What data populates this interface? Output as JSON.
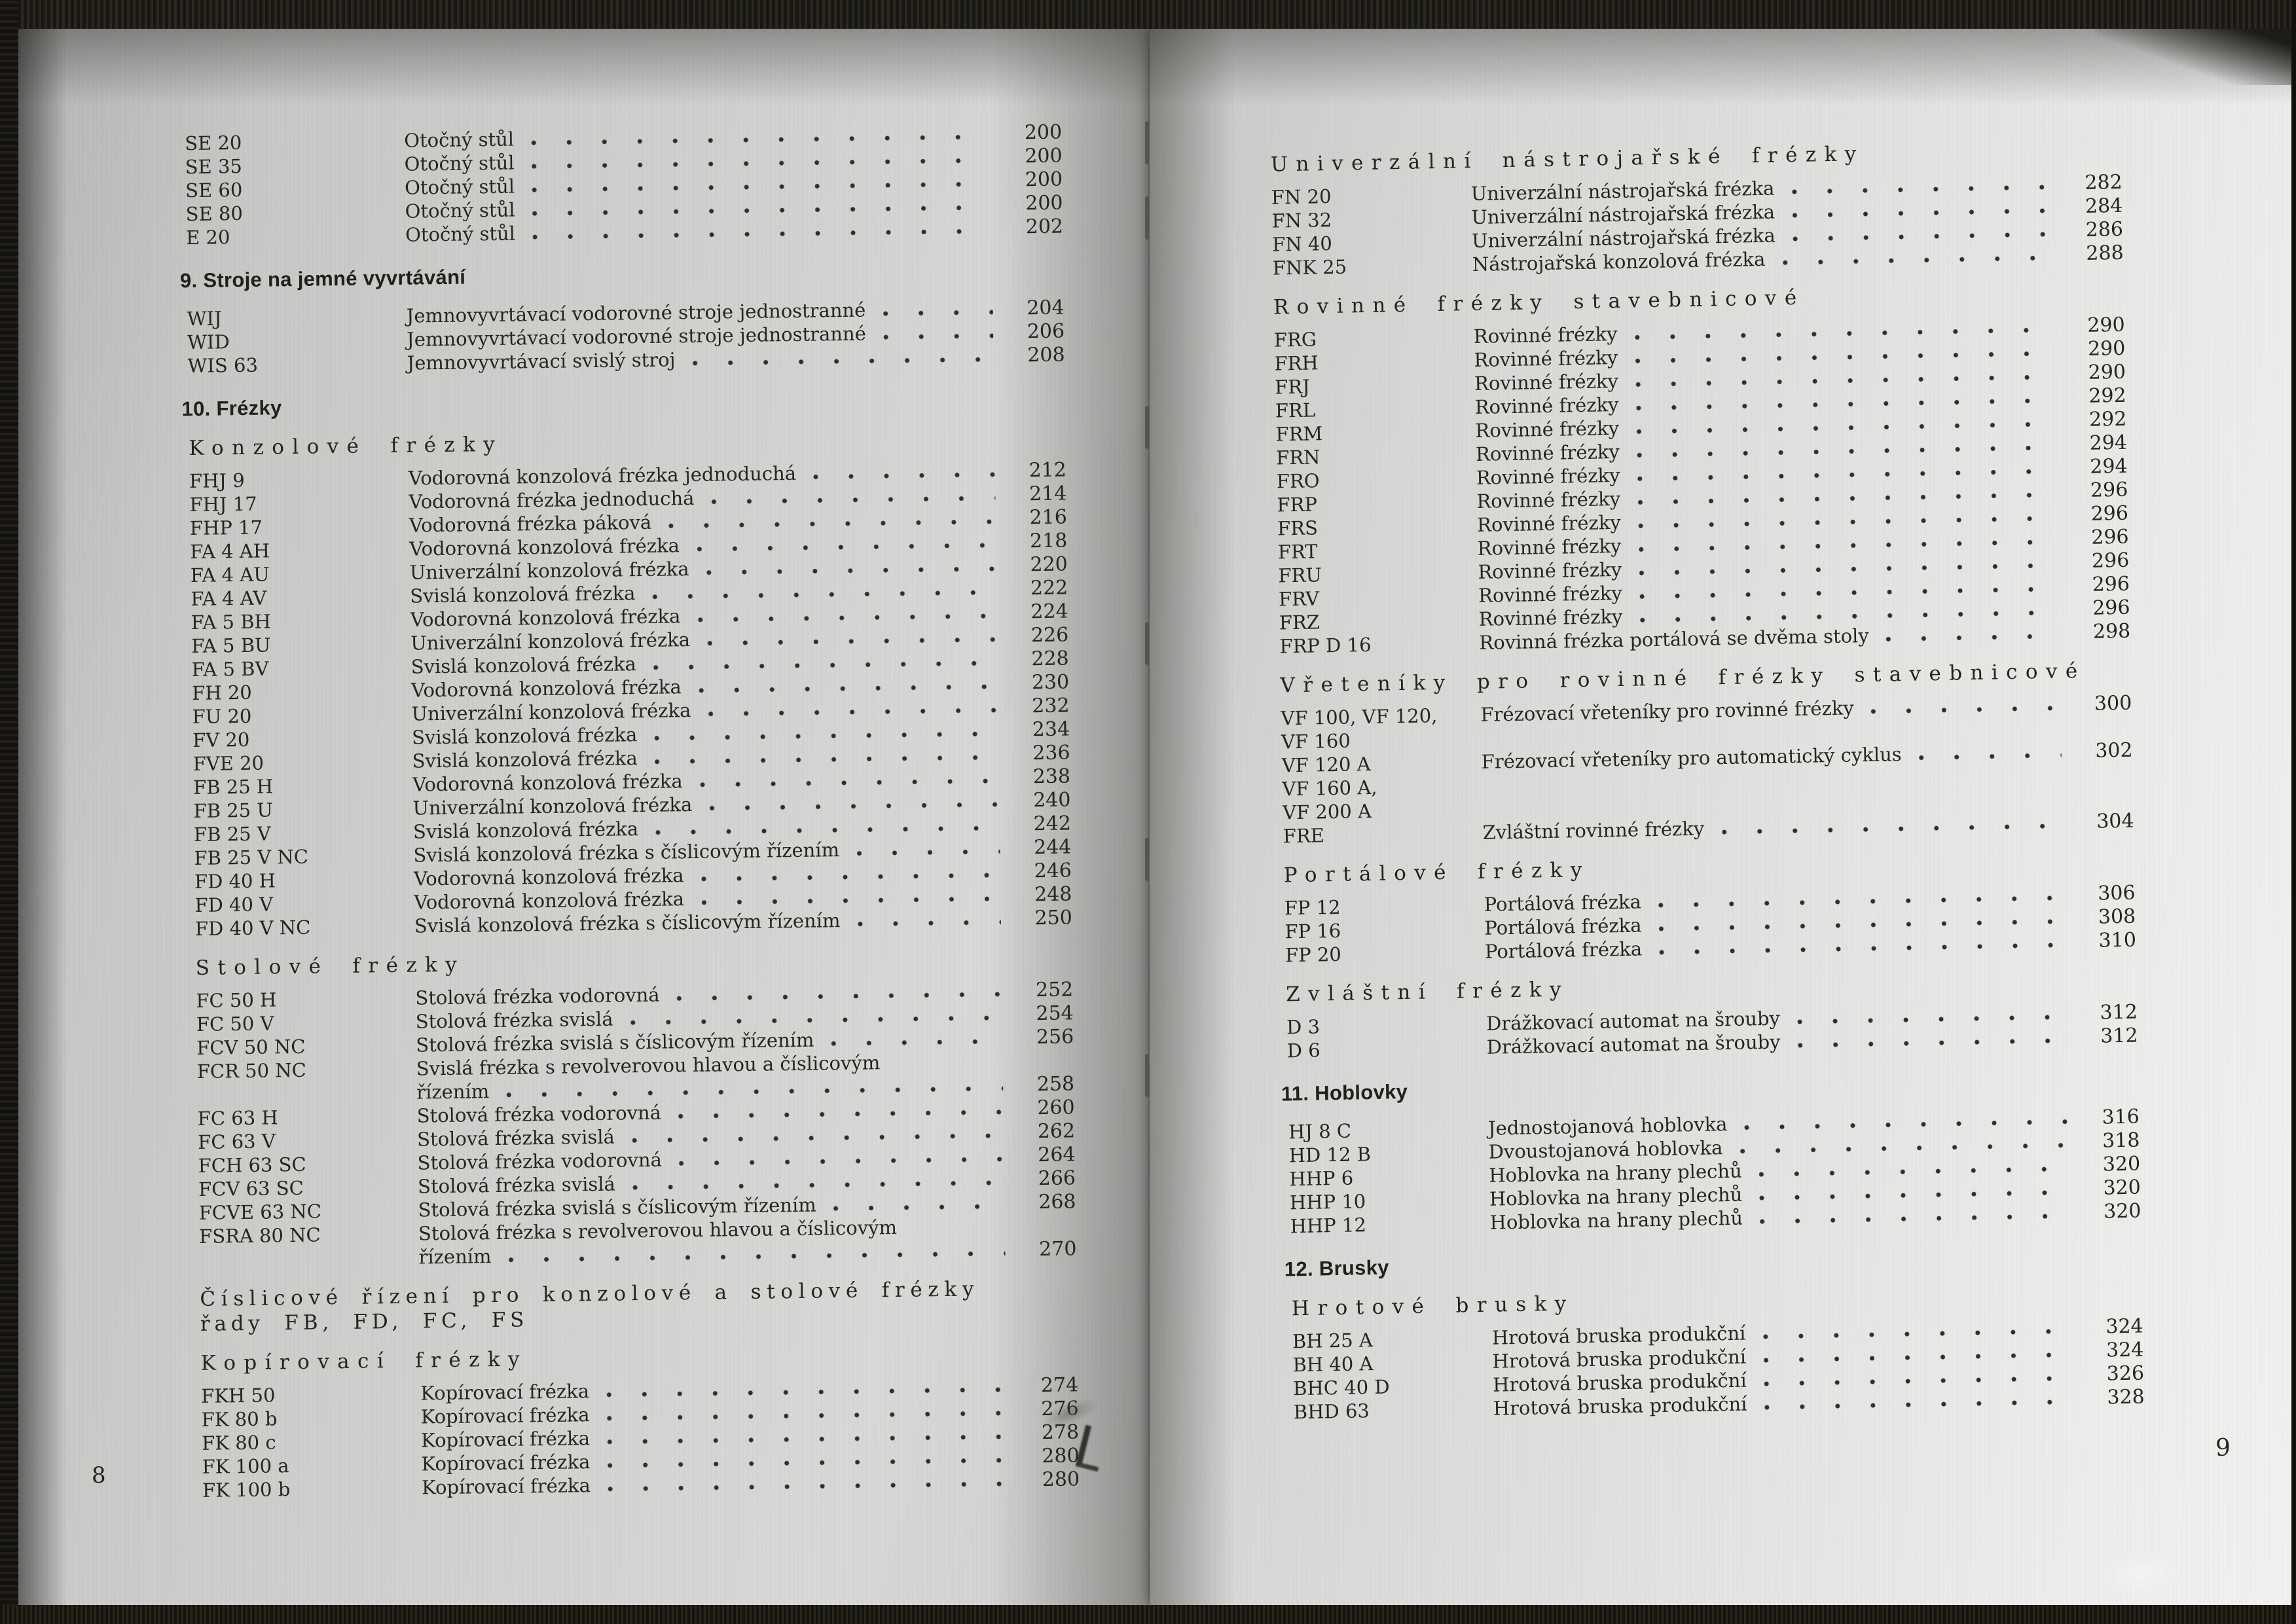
{
  "left_page": {
    "folio": "8",
    "blocks": [
      {
        "type": "entries",
        "rows": [
          {
            "code": "SE 20",
            "desc": "Otočný stůl",
            "page": "200"
          },
          {
            "code": "SE 35",
            "desc": "Otočný stůl",
            "page": "200"
          },
          {
            "code": "SE 60",
            "desc": "Otočný stůl",
            "page": "200"
          },
          {
            "code": "SE 80",
            "desc": "Otočný stůl",
            "page": "200"
          },
          {
            "code": "E 20",
            "desc": "Otočný stůl",
            "page": "202"
          }
        ]
      },
      {
        "type": "section",
        "label": "9. Stroje na jemné vyvrtávání"
      },
      {
        "type": "entries",
        "rows": [
          {
            "code": "WIJ",
            "desc": "Jemnovyvrtávací vodorovné stroje jednostranné",
            "page": "204"
          },
          {
            "code": "WID",
            "desc": "Jemnovyvrtávací vodorovné stroje jednostranné",
            "page": "206"
          },
          {
            "code": "WIS 63",
            "desc": "Jemnovyvrtávací svislý stroj",
            "page": "208"
          }
        ]
      },
      {
        "type": "section",
        "label": "10. Frézky"
      },
      {
        "type": "subsection",
        "label": "Konzolové frézky"
      },
      {
        "type": "entries",
        "rows": [
          {
            "code": "FHJ 9",
            "desc": "Vodorovná konzolová frézka jednoduchá",
            "page": "212"
          },
          {
            "code": "FHJ 17",
            "desc": "Vodorovná frézka jednoduchá",
            "page": "214"
          },
          {
            "code": "FHP 17",
            "desc": "Vodorovná frézka páková",
            "page": "216"
          },
          {
            "code": "FA 4 AH",
            "desc": "Vodorovná konzolová frézka",
            "page": "218"
          },
          {
            "code": "FA 4 AU",
            "desc": "Univerzální konzolová frézka",
            "page": "220"
          },
          {
            "code": "FA 4 AV",
            "desc": "Svislá konzolová frézka",
            "page": "222"
          },
          {
            "code": "FA 5 BH",
            "desc": "Vodorovná konzolová frézka",
            "page": "224"
          },
          {
            "code": "FA 5 BU",
            "desc": "Univerzální konzolová frézka",
            "page": "226"
          },
          {
            "code": "FA 5 BV",
            "desc": "Svislá konzolová frézka",
            "page": "228"
          },
          {
            "code": "FH 20",
            "desc": "Vodorovná konzolová frézka",
            "page": "230"
          },
          {
            "code": "FU 20",
            "desc": "Univerzální konzolová frézka",
            "page": "232"
          },
          {
            "code": "FV 20",
            "desc": "Svislá konzolová frézka",
            "page": "234"
          },
          {
            "code": "FVE 20",
            "desc": "Svislá konzolová frézka",
            "page": "236"
          },
          {
            "code": "FB 25 H",
            "desc": "Vodorovná konzolová frézka",
            "page": "238"
          },
          {
            "code": "FB 25 U",
            "desc": "Univerzální konzolová frézka",
            "page": "240"
          },
          {
            "code": "FB 25 V",
            "desc": "Svislá konzolová frézka",
            "page": "242"
          },
          {
            "code": "FB 25 V NC",
            "desc": "Svislá konzolová frézka s číslicovým řízením",
            "page": "244"
          },
          {
            "code": "FD 40 H",
            "desc": "Vodorovná konzolová frézka",
            "page": "246"
          },
          {
            "code": "FD 40 V",
            "desc": "Vodorovná konzolová frézka",
            "page": "248"
          },
          {
            "code": "FD 40 V NC",
            "desc": "Svislá konzolová frézka s číslicovým řízením",
            "page": "250"
          }
        ]
      },
      {
        "type": "subsection",
        "label": "Stolové frézky"
      },
      {
        "type": "entries",
        "rows": [
          {
            "code": "FC 50 H",
            "desc": "Stolová frézka vodorovná",
            "page": "252"
          },
          {
            "code": "FC 50 V",
            "desc": "Stolová frézka svislá",
            "page": "254"
          },
          {
            "code": "FCV 50 NC",
            "desc": "Stolová frézka svislá s číslicovým řízením",
            "page": "256"
          },
          {
            "code": "FCR 50 NC",
            "desc": "Svislá frézka s revolverovou hlavou a číslicovým",
            "desc2": "řízením",
            "page": "258"
          },
          {
            "code": "FC 63 H",
            "desc": "Stolová frézka vodorovná",
            "page": "260"
          },
          {
            "code": "FC 63 V",
            "desc": "Stolová frézka svislá",
            "page": "262"
          },
          {
            "code": "FCH 63 SC",
            "desc": "Stolová frézka vodorovná",
            "page": "264"
          },
          {
            "code": "FCV 63 SC",
            "desc": "Stolová frézka svislá",
            "page": "266"
          },
          {
            "code": "FCVE 63 NC",
            "desc": "Stolová frézka svislá s číslicovým řízením",
            "page": "268"
          },
          {
            "code": "FSRA 80 NC",
            "desc": "Stolová frézka s revolverovou hlavou a číslicovým",
            "desc2": "řízením",
            "page": "270"
          }
        ]
      },
      {
        "type": "subsection2",
        "lines": [
          "Číslicové řízení pro konzolové a stolové frézky",
          "řady FB, FD, FC, FS"
        ]
      },
      {
        "type": "subsection",
        "label": "Kopírovací frézky"
      },
      {
        "type": "entries",
        "rows": [
          {
            "code": "FKH 50",
            "desc": "Kopírovací frézka",
            "page": "274"
          },
          {
            "code": "FK 80 b",
            "desc": "Kopírovací frézka",
            "page": "276"
          },
          {
            "code": "FK 80 c",
            "desc": "Kopírovací frézka",
            "page": "278"
          },
          {
            "code": "FK 100 a",
            "desc": "Kopírovací frézka",
            "page": "280"
          },
          {
            "code": "FK 100 b",
            "desc": "Kopírovací frézka",
            "page": "280"
          }
        ]
      }
    ]
  },
  "right_page": {
    "folio": "9",
    "blocks": [
      {
        "type": "subsection",
        "label": "Univerzální nástrojařské frézky"
      },
      {
        "type": "entries",
        "rows": [
          {
            "code": "FN 20",
            "desc": "Univerzální nástrojařská frézka",
            "page": "282"
          },
          {
            "code": "FN 32",
            "desc": "Univerzální nástrojařská frézka",
            "page": "284"
          },
          {
            "code": "FN 40",
            "desc": "Univerzální nástrojařská frézka",
            "page": "286"
          },
          {
            "code": "FNK 25",
            "desc": "Nástrojařská konzolová frézka",
            "page": "288"
          }
        ]
      },
      {
        "type": "subsection",
        "label": "Rovinné frézky stavebnicové"
      },
      {
        "type": "entries",
        "rows": [
          {
            "code": "FRG",
            "desc": "Rovinné frézky",
            "page": "290"
          },
          {
            "code": "FRH",
            "desc": "Rovinné frézky",
            "page": "290"
          },
          {
            "code": "FRJ",
            "desc": "Rovinné frézky",
            "page": "290"
          },
          {
            "code": "FRL",
            "desc": "Rovinné frézky",
            "page": "292"
          },
          {
            "code": "FRM",
            "desc": "Rovinné frézky",
            "page": "292"
          },
          {
            "code": "FRN",
            "desc": "Rovinné frézky",
            "page": "294"
          },
          {
            "code": "FRO",
            "desc": "Rovinné frézky",
            "page": "294"
          },
          {
            "code": "FRP",
            "desc": "Rovinné frézky",
            "page": "296"
          },
          {
            "code": "FRS",
            "desc": "Rovinné frézky",
            "page": "296"
          },
          {
            "code": "FRT",
            "desc": "Rovinné frézky",
            "page": "296"
          },
          {
            "code": "FRU",
            "desc": "Rovinné frézky",
            "page": "296"
          },
          {
            "code": "FRV",
            "desc": "Rovinné frézky",
            "page": "296"
          },
          {
            "code": "FRZ",
            "desc": "Rovinné frézky",
            "page": "296"
          },
          {
            "code": "FRP D 16",
            "desc": "Rovinná frézka portálová se dvěma stoly",
            "page": "298"
          }
        ]
      },
      {
        "type": "subsection",
        "label": "Vřeteníky pro rovinné frézky stavebnicové"
      },
      {
        "type": "entries",
        "rows": [
          {
            "code": "VF 100, VF 120,",
            "desc": "Frézovací vřeteníky pro rovinné frézky",
            "page": "300"
          },
          {
            "code": "VF 160",
            "desc": "",
            "page": ""
          },
          {
            "code": "VF 120 A",
            "desc": "Frézovací vřeteníky pro automatický cyklus",
            "page": "302"
          },
          {
            "code": "VF 160 A,",
            "desc": "",
            "page": ""
          },
          {
            "code": "VF 200 A",
            "desc": "",
            "page": ""
          },
          {
            "code": "FRE",
            "desc": "Zvláštní rovinné frézky",
            "page": "304"
          }
        ]
      },
      {
        "type": "subsection",
        "label": "Portálové frézky"
      },
      {
        "type": "entries",
        "rows": [
          {
            "code": "FP 12",
            "desc": "Portálová frézka",
            "page": "306"
          },
          {
            "code": "FP 16",
            "desc": "Portálová frézka",
            "page": "308"
          },
          {
            "code": "FP 20",
            "desc": "Portálová frézka",
            "page": "310"
          }
        ]
      },
      {
        "type": "subsection",
        "label": "Zvláštní frézky"
      },
      {
        "type": "entries",
        "rows": [
          {
            "code": "D 3",
            "desc": "Drážkovací automat na šrouby",
            "page": "312"
          },
          {
            "code": "D 6",
            "desc": "Drážkovací automat na šrouby",
            "page": "312"
          }
        ]
      },
      {
        "type": "section",
        "label": "11. Hoblovky"
      },
      {
        "type": "entries",
        "rows": [
          {
            "code": "HJ 8 C",
            "desc": "Jednostojanová hoblovka",
            "page": "316"
          },
          {
            "code": "HD 12 B",
            "desc": "Dvoustojanová hoblovka",
            "page": "318"
          },
          {
            "code": "HHP 6",
            "desc": "Hoblovka na hrany plechů",
            "page": "320"
          },
          {
            "code": "HHP 10",
            "desc": "Hoblovka na hrany plechů",
            "page": "320"
          },
          {
            "code": "HHP 12",
            "desc": "Hoblovka na hrany plechů",
            "page": "320"
          }
        ]
      },
      {
        "type": "section",
        "label": "12. Brusky"
      },
      {
        "type": "subsection",
        "label": "Hrotové brusky"
      },
      {
        "type": "entries",
        "rows": [
          {
            "code": "BH 25 A",
            "desc": "Hrotová bruska produkční",
            "page": "324"
          },
          {
            "code": "BH 40 A",
            "desc": "Hrotová bruska produkční",
            "page": "324"
          },
          {
            "code": "BHC 40 D",
            "desc": "Hrotová bruska produkční",
            "page": "326"
          },
          {
            "code": "BHD 63",
            "desc": "Hrotová bruska produkční",
            "page": "328"
          }
        ]
      }
    ]
  }
}
